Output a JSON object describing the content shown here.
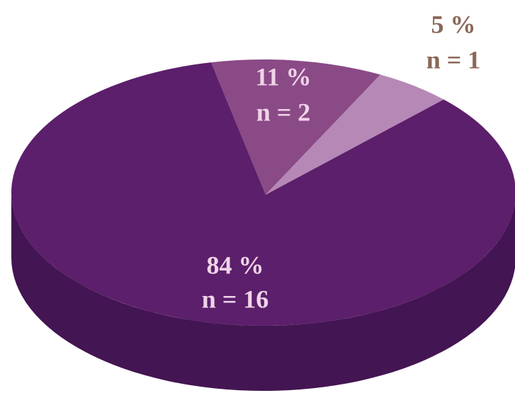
{
  "chart_data": {
    "type": "pie",
    "values": [
      11,
      5,
      84
    ],
    "value_labels": [
      "11 %",
      "5 %",
      "84 %"
    ],
    "counts": [
      2,
      1,
      16
    ],
    "count_labels": [
      "n = 2",
      "n = 1",
      "n = 16"
    ],
    "colors": [
      "#8a4a86",
      "#b688b6",
      "#5c1f6b"
    ],
    "side_colors": [
      "#6a3468",
      "#8f6290",
      "#431552"
    ],
    "label_colors": [
      "#f0d4e8",
      "#8a6858",
      "#f0d4e8"
    ]
  }
}
